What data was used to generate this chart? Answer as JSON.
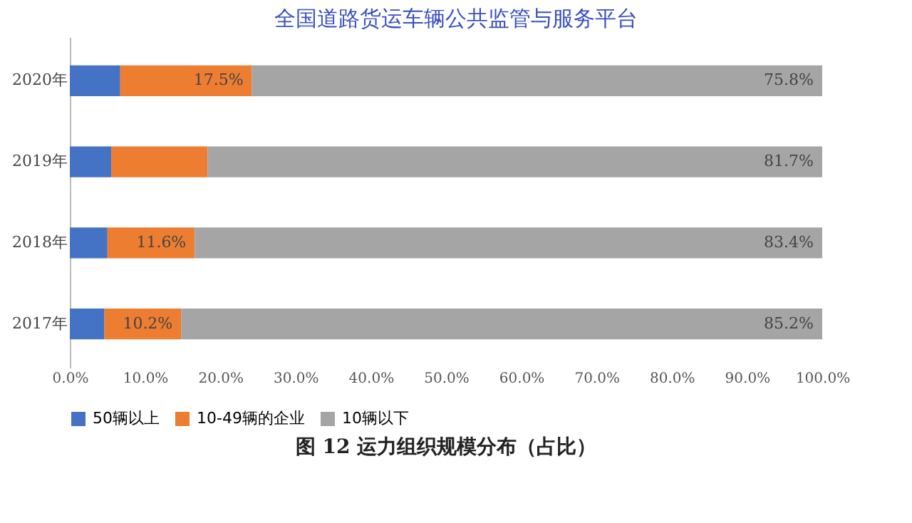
{
  "chart_data": {
    "type": "bar",
    "orientation": "horizontal",
    "stacked": true,
    "title": "图 12 运力组织规模分布（占比）",
    "annotations": [
      "全国道路货运车辆公共监管与服务平台"
    ],
    "categories": [
      "2020年",
      "2019年",
      "2018年",
      "2017年"
    ],
    "series": [
      {
        "name": "50辆以上",
        "color": "#4472c4",
        "values": [
          6.7,
          5.5,
          5.0,
          4.6
        ],
        "value_labels": [
          null,
          null,
          null,
          null
        ]
      },
      {
        "name": "10-49辆的企业",
        "color": "#ed7d31",
        "values": [
          17.5,
          12.8,
          11.6,
          10.2
        ],
        "value_labels": [
          "17.5%",
          null,
          "11.6%",
          "10.2%"
        ]
      },
      {
        "name": "10辆以下",
        "color": "#a5a5a5",
        "values": [
          75.8,
          81.7,
          83.4,
          85.2
        ],
        "value_labels": [
          "75.8%",
          "81.7%",
          "83.4%",
          "85.2%"
        ]
      }
    ],
    "xlim": [
      0,
      100
    ],
    "xticks": [
      {
        "value": 0,
        "label": "0.0%"
      },
      {
        "value": 10,
        "label": "10.0%"
      },
      {
        "value": 20,
        "label": "20.0%"
      },
      {
        "value": 30,
        "label": "30.0%"
      },
      {
        "value": 40,
        "label": "40.0%"
      },
      {
        "value": 50,
        "label": "50.0%"
      },
      {
        "value": 60,
        "label": "60.0%"
      },
      {
        "value": 70,
        "label": "70.0%"
      },
      {
        "value": 80,
        "label": "80.0%"
      },
      {
        "value": 90,
        "label": "90.0%"
      },
      {
        "value": 100,
        "label": "100.0%"
      }
    ],
    "grid": false,
    "legend": "bottom"
  }
}
